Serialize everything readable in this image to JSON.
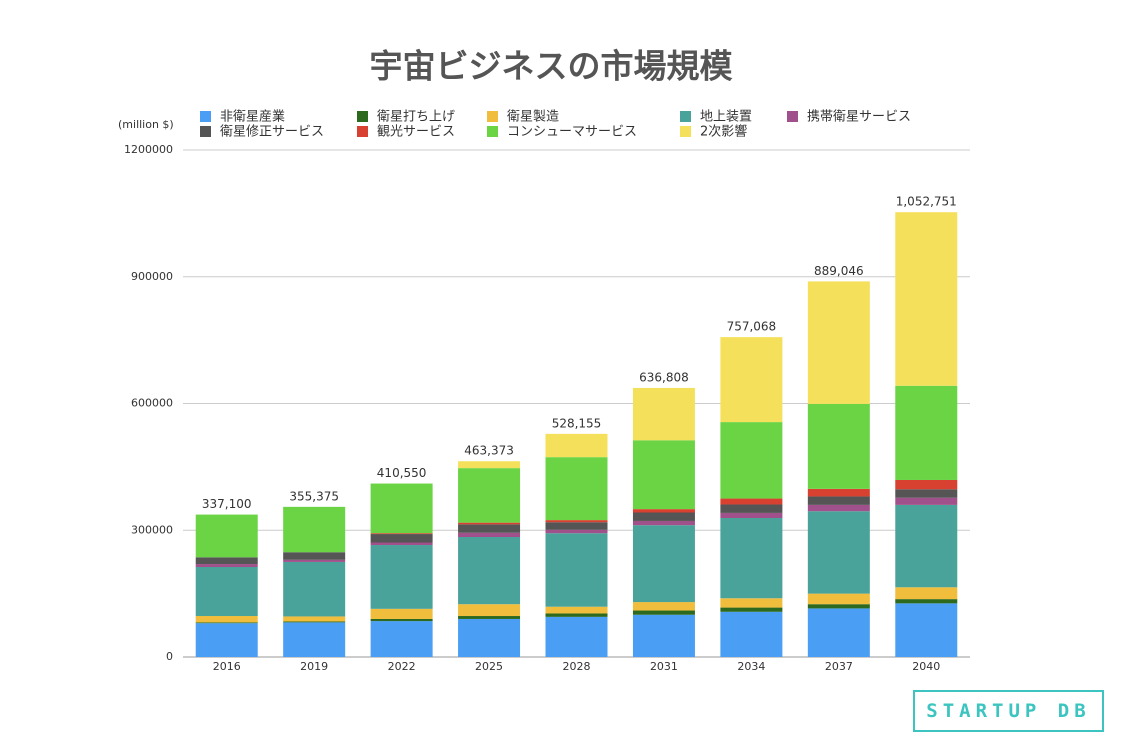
{
  "chart_data": {
    "type": "stacked_bar",
    "title": "宇宙ビジネスの市場規模",
    "y_label": "(million $)",
    "categories": [
      "2016",
      "2019",
      "2022",
      "2025",
      "2028",
      "2031",
      "2034",
      "2037",
      "2040"
    ],
    "series": [
      {
        "name": "非衛星産業",
        "color": "#4a9ff5",
        "values": [
          80000,
          82000,
          85000,
          90000,
          95000,
          100000,
          107000,
          115000,
          127000
        ]
      },
      {
        "name": "衛星打ち上げ",
        "color": "#2d6a1f",
        "values": [
          2000,
          2000,
          5000,
          7000,
          8000,
          10000,
          10000,
          10000,
          10000
        ]
      },
      {
        "name": "衛星製造",
        "color": "#f0bd3c",
        "values": [
          15000,
          12000,
          24000,
          28000,
          16000,
          20000,
          22000,
          25000,
          28000
        ]
      },
      {
        "name": "地上装置",
        "color": "#4aa39a",
        "values": [
          116000,
          129000,
          151000,
          159000,
          174000,
          182000,
          190000,
          195000,
          195000
        ]
      },
      {
        "name": "携帯衛星サービス",
        "color": "#a0508a",
        "values": [
          7000,
          5000,
          6000,
          10000,
          8000,
          10000,
          12000,
          15000,
          17000
        ]
      },
      {
        "name": "衛星修正サービス",
        "color": "#555555",
        "values": [
          16000,
          18000,
          20000,
          20000,
          18000,
          20000,
          20000,
          20000,
          20000
        ]
      },
      {
        "name": "観光サービス",
        "color": "#d8402f",
        "values": [
          0,
          0,
          2000,
          4000,
          5000,
          8000,
          14000,
          18000,
          22000
        ]
      },
      {
        "name": "コンシューマサービス",
        "color": "#6ad445",
        "values": [
          101100,
          107375,
          117550,
          129000,
          149000,
          163000,
          181000,
          201000,
          223000
        ]
      },
      {
        "name": "2次影響",
        "color": "#f5e05c",
        "values": [
          0,
          0,
          0,
          16373,
          55155,
          123808,
          201068,
          290046,
          410751
        ]
      }
    ],
    "totals": {
      "values": [
        337100,
        355375,
        410550,
        463373,
        528155,
        636808,
        757068,
        889046,
        1052751
      ],
      "value_labels": [
        "337,100",
        "355,375",
        "410,550",
        "463,373",
        "528,155",
        "636,808",
        "757,068",
        "889,046",
        "1,052,751"
      ]
    },
    "ylim": [
      0,
      1200000
    ],
    "yticks": [
      0,
      300000,
      600000,
      900000,
      1200000
    ],
    "grid": true
  },
  "watermark": "STARTUP DB"
}
